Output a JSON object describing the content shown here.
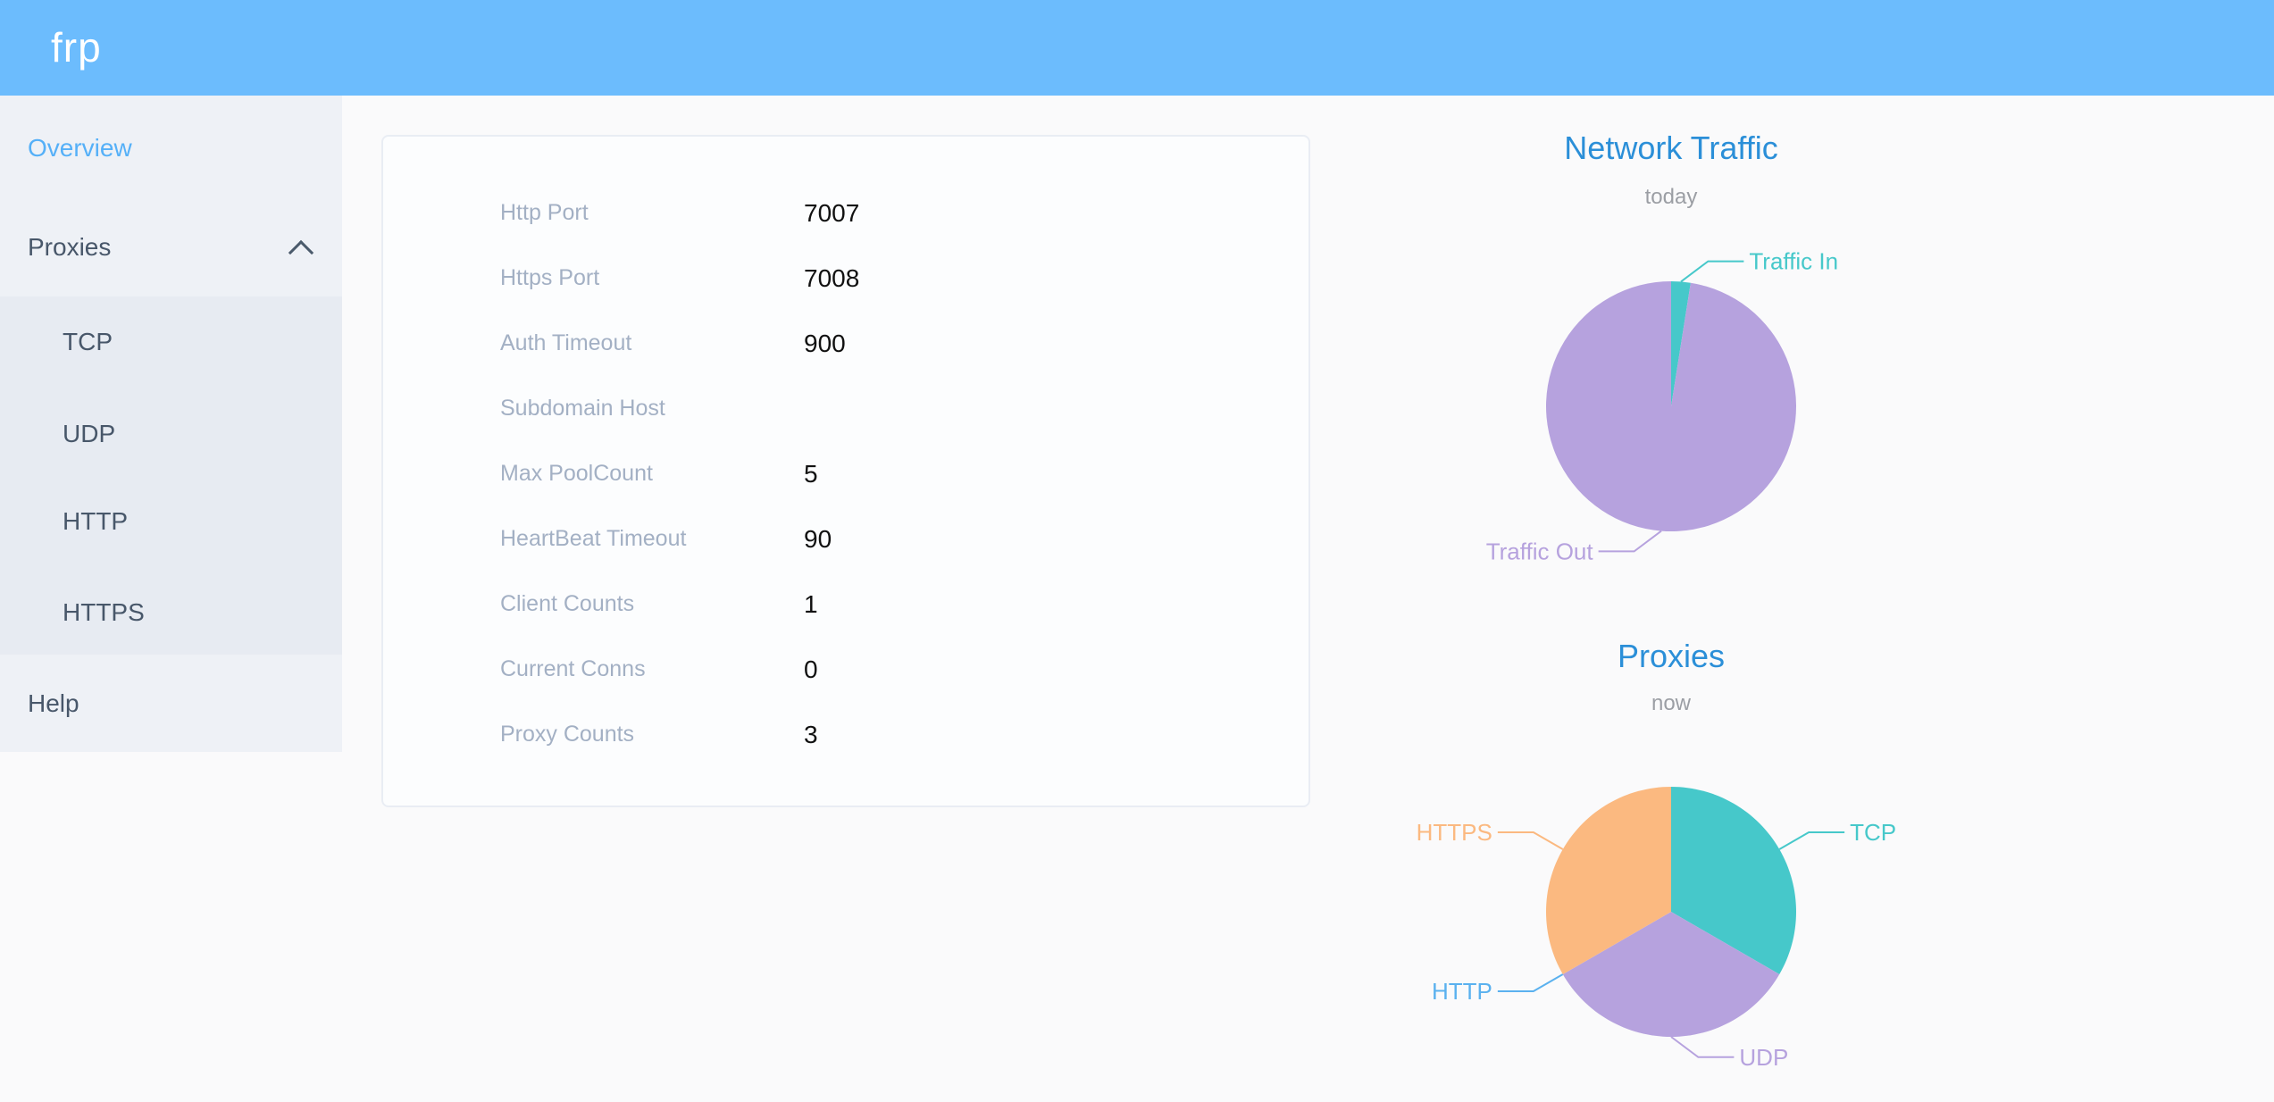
{
  "header": {
    "logo": "frp",
    "background": "#6cbcfd"
  },
  "sidebar": {
    "items": [
      {
        "label": "Overview",
        "active": true
      },
      {
        "label": "Proxies",
        "expanded": true
      },
      {
        "label": "Help"
      }
    ],
    "submenu": [
      "TCP",
      "UDP",
      "HTTP",
      "HTTPS"
    ],
    "icons": {
      "proxies_expander": "chevron-up-icon"
    }
  },
  "server_info": {
    "rows": [
      {
        "label": "Http Port",
        "value": "7007"
      },
      {
        "label": "Https Port",
        "value": "7008"
      },
      {
        "label": "Auth Timeout",
        "value": "900"
      },
      {
        "label": "Subdomain Host",
        "value": ""
      },
      {
        "label": "Max PoolCount",
        "value": "5"
      },
      {
        "label": "HeartBeat Timeout",
        "value": "90"
      },
      {
        "label": "Client Counts",
        "value": "1"
      },
      {
        "label": "Current Conns",
        "value": "0"
      },
      {
        "label": "Proxy Counts",
        "value": "3"
      }
    ]
  },
  "chart_data": [
    {
      "type": "pie",
      "title": "Network Traffic",
      "subtitle": "today",
      "values_are": "percent of circle, estimated from arc angles",
      "start_angle_deg": 0,
      "clockwise": true,
      "legend_position": "none",
      "slices": [
        {
          "label": "Traffic In",
          "value": 2.5,
          "color": "#46c8ca"
        },
        {
          "label": "Traffic Out",
          "value": 97.5,
          "color": "#b6a2de"
        }
      ]
    },
    {
      "type": "pie",
      "title": "Proxies",
      "subtitle": "now",
      "values_are": "proxy count",
      "start_angle_deg": 0,
      "clockwise": true,
      "legend_position": "none",
      "slices": [
        {
          "label": "TCP",
          "value": 1,
          "color": "#46c8ca"
        },
        {
          "label": "UDP",
          "value": 1,
          "color": "#b6a2de"
        },
        {
          "label": "HTTP",
          "value": 0,
          "color": "#5ab1ef"
        },
        {
          "label": "HTTPS",
          "value": 1,
          "color": "#fbb980"
        }
      ]
    }
  ],
  "colors": {
    "header_blue": "#6cbcfd",
    "sidebar_bg": "#eef1f6",
    "submenu_bg": "#e7ebf2",
    "nav_text": "#48576a",
    "nav_active": "#55b0f8",
    "chart_title_blue": "#2b8fd8",
    "chart_subtitle_gray": "#9b9ea4",
    "card_label_gray": "#a3b0c4",
    "card_value": "#111111"
  }
}
